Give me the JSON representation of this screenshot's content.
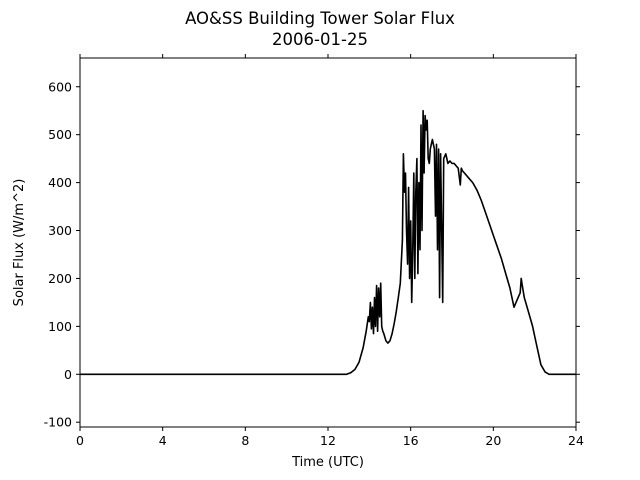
{
  "chart_data": {
    "type": "line",
    "title": "AO&SS Building Tower Solar Flux",
    "subtitle": "2006-01-25",
    "xlabel": "Time (UTC)",
    "ylabel": "Solar Flux (W/m^2)",
    "xlim": [
      0,
      24
    ],
    "ylim": [
      -110,
      660
    ],
    "xticks": [
      0,
      4,
      8,
      12,
      16,
      20,
      24
    ],
    "yticks": [
      -100,
      0,
      100,
      200,
      300,
      400,
      500,
      600
    ],
    "grid": false,
    "legend": "none",
    "line_color": "#000000",
    "series": [
      {
        "x": [
          0,
          12.9,
          13.1,
          13.3,
          13.5,
          13.7,
          13.85,
          13.95,
          14.0,
          14.05,
          14.1,
          14.15,
          14.2,
          14.25,
          14.3,
          14.35,
          14.4,
          14.45,
          14.5,
          14.55,
          14.6,
          14.65,
          14.7,
          14.8,
          14.9,
          15.0,
          15.1,
          15.2,
          15.3,
          15.4,
          15.5,
          15.6,
          15.65,
          15.7,
          15.75,
          15.8,
          15.85,
          15.9,
          15.95,
          16.0,
          16.05,
          16.1,
          16.15,
          16.2,
          16.25,
          16.3,
          16.35,
          16.4,
          16.45,
          16.5,
          16.55,
          16.6,
          16.65,
          16.7,
          16.75,
          16.8,
          16.85,
          16.9,
          16.95,
          17.0,
          17.05,
          17.1,
          17.15,
          17.2,
          17.25,
          17.3,
          17.35,
          17.4,
          17.45,
          17.5,
          17.55,
          17.6,
          17.7,
          17.8,
          17.9,
          18.0,
          18.1,
          18.2,
          18.3,
          18.4,
          18.45,
          18.5,
          18.6,
          18.8,
          19.0,
          19.2,
          19.4,
          19.6,
          19.8,
          20.0,
          20.2,
          20.4,
          20.6,
          20.8,
          21.0,
          21.2,
          21.3,
          21.35,
          21.4,
          21.5,
          21.7,
          21.9,
          22.1,
          22.3,
          22.5,
          22.7,
          22.9,
          23.1,
          23.3,
          23.5,
          24.0
        ],
        "y": [
          0,
          0,
          3,
          10,
          25,
          55,
          90,
          120,
          110,
          150,
          95,
          140,
          85,
          160,
          100,
          185,
          90,
          180,
          120,
          190,
          100,
          90,
          85,
          70,
          65,
          70,
          85,
          105,
          130,
          160,
          190,
          280,
          460,
          380,
          420,
          300,
          230,
          390,
          200,
          320,
          150,
          250,
          420,
          200,
          380,
          450,
          210,
          400,
          260,
          520,
          300,
          550,
          420,
          540,
          510,
          530,
          450,
          440,
          470,
          480,
          490,
          480,
          470,
          330,
          480,
          260,
          470,
          160,
          460,
          300,
          150,
          450,
          460,
          440,
          445,
          440,
          440,
          435,
          430,
          395,
          430,
          425,
          420,
          410,
          400,
          385,
          365,
          340,
          315,
          290,
          265,
          240,
          210,
          180,
          140,
          160,
          170,
          200,
          185,
          160,
          130,
          100,
          60,
          20,
          5,
          0,
          0,
          0,
          0,
          0,
          0
        ]
      }
    ]
  }
}
